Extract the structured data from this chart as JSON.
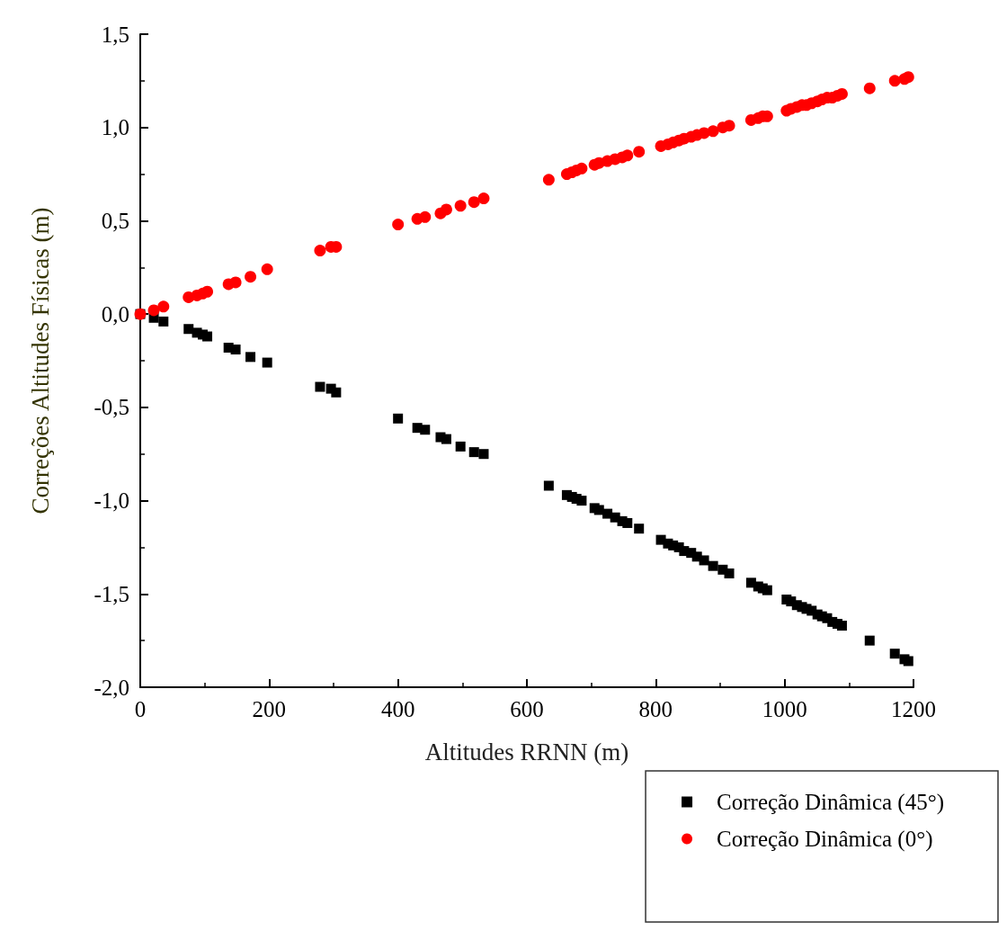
{
  "chart_data": {
    "type": "scatter",
    "xlabel": "Altitudes RRNN (m)",
    "ylabel": "Correções Altitudes Físicas (m)",
    "xlim": [
      0,
      1200
    ],
    "xticks": [
      0,
      200,
      400,
      600,
      800,
      1000,
      1200
    ],
    "ylim": [
      -2.0,
      1.5
    ],
    "yticks": [
      {
        "value": -2,
        "label": "-2,0"
      },
      {
        "value": -1.5,
        "label": "-1,5"
      },
      {
        "value": -1,
        "label": "-1,0"
      },
      {
        "value": -0.5,
        "label": "-0,5"
      },
      {
        "value": 0,
        "label": "0,0"
      },
      {
        "value": 0.5,
        "label": "0,5"
      },
      {
        "value": 1,
        "label": "1,0"
      },
      {
        "value": 1.5,
        "label": "1,5"
      }
    ],
    "grid": false,
    "legend": "bottom right",
    "x": [
      0,
      21,
      36,
      75,
      88,
      97,
      104,
      137,
      148,
      171,
      197,
      279,
      296,
      304,
      400,
      430,
      442,
      466,
      475,
      497,
      518,
      533,
      634,
      662,
      670,
      677,
      685,
      705,
      712,
      725,
      737,
      748,
      756,
      774,
      808,
      819,
      827,
      836,
      844,
      855,
      864,
      875,
      889,
      904,
      914,
      948,
      959,
      966,
      973,
      1003,
      1010,
      1019,
      1027,
      1034,
      1042,
      1051,
      1058,
      1066,
      1074,
      1082,
      1089,
      1132,
      1171,
      1186,
      1192
    ],
    "series": [
      {
        "name": "Correção Dinâmica (45°)",
        "color": "#000000",
        "marker": "square",
        "values": [
          0,
          -0.02,
          -0.04,
          -0.08,
          -0.1,
          -0.11,
          -0.12,
          -0.18,
          -0.19,
          -0.23,
          -0.26,
          -0.39,
          -0.4,
          -0.42,
          -0.56,
          -0.61,
          -0.62,
          -0.66,
          -0.67,
          -0.71,
          -0.74,
          -0.75,
          -0.92,
          -0.97,
          -0.98,
          -0.99,
          -1.0,
          -1.04,
          -1.05,
          -1.07,
          -1.09,
          -1.11,
          -1.12,
          -1.15,
          -1.21,
          -1.23,
          -1.24,
          -1.25,
          -1.27,
          -1.28,
          -1.3,
          -1.32,
          -1.35,
          -1.37,
          -1.39,
          -1.44,
          -1.46,
          -1.47,
          -1.48,
          -1.53,
          -1.54,
          -1.56,
          -1.57,
          -1.58,
          -1.59,
          -1.61,
          -1.62,
          -1.63,
          -1.65,
          -1.66,
          -1.67,
          -1.75,
          -1.82,
          -1.85,
          -1.86
        ]
      },
      {
        "name": "Correção Dinâmica (0°)",
        "color": "#ff0000",
        "marker": "circle",
        "values": [
          0,
          0.02,
          0.04,
          0.09,
          0.1,
          0.11,
          0.12,
          0.16,
          0.17,
          0.2,
          0.24,
          0.34,
          0.36,
          0.36,
          0.48,
          0.51,
          0.52,
          0.54,
          0.56,
          0.58,
          0.6,
          0.62,
          0.72,
          0.75,
          0.76,
          0.77,
          0.78,
          0.8,
          0.81,
          0.82,
          0.83,
          0.84,
          0.85,
          0.87,
          0.9,
          0.91,
          0.92,
          0.93,
          0.94,
          0.95,
          0.96,
          0.97,
          0.98,
          1.0,
          1.01,
          1.04,
          1.05,
          1.06,
          1.06,
          1.09,
          1.1,
          1.11,
          1.12,
          1.12,
          1.13,
          1.14,
          1.15,
          1.16,
          1.16,
          1.17,
          1.18,
          1.21,
          1.25,
          1.26,
          1.27
        ]
      }
    ]
  }
}
